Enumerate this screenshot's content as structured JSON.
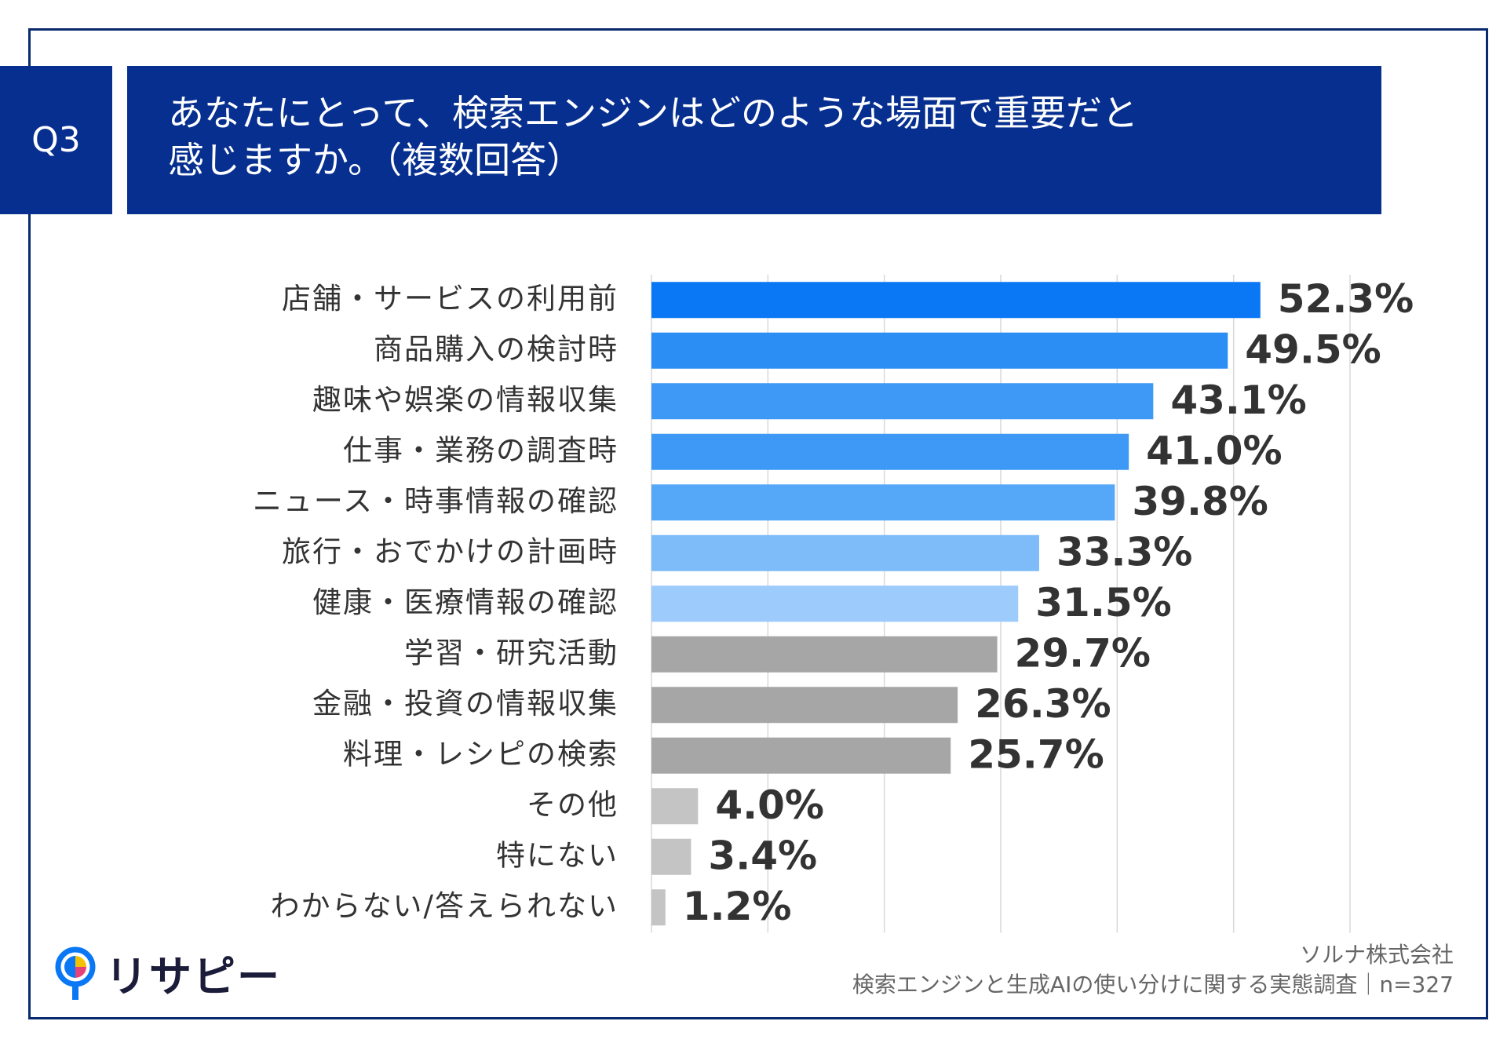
{
  "header": {
    "badge": "Q3",
    "title_line1": "あなたにとって、検索エンジンはどのような場面で重要だと",
    "title_line2": "感じますか。（複数回答）"
  },
  "chart_data": {
    "type": "bar",
    "orientation": "horizontal",
    "title": "あなたにとって、検索エンジンはどのような場面で重要だと感じますか。（複数回答）",
    "xlim": [
      0,
      60
    ],
    "grid": true,
    "categories": [
      "店舗・サービスの利用前",
      "商品購入の検討時",
      "趣味や娯楽の情報収集",
      "仕事・業務の調査時",
      "ニュース・時事情報の確認",
      "旅行・おでかけの計画時",
      "健康・医療情報の確認",
      "学習・研究活動",
      "金融・投資の情報収集",
      "料理・レシピの検索",
      "その他",
      "特にない",
      "わからない/答えられない"
    ],
    "values": [
      52.3,
      49.5,
      43.1,
      41.0,
      39.8,
      33.3,
      31.5,
      29.7,
      26.3,
      25.7,
      4.0,
      3.4,
      1.2
    ],
    "value_labels": [
      "52.3%",
      "49.5%",
      "43.1%",
      "41.0%",
      "39.8%",
      "33.3%",
      "31.5%",
      "29.7%",
      "26.3%",
      "25.7%",
      "4.0%",
      "3.4%",
      "1.2%"
    ],
    "bar_colors": [
      "#0a78f5",
      "#2a8ef5",
      "#3d99f5",
      "#3d99f5",
      "#55a7f7",
      "#7dbcf9",
      "#9dcbfb",
      "#a6a6a6",
      "#a6a6a6",
      "#a6a6a6",
      "#c4c4c4",
      "#c4c4c4",
      "#c4c4c4"
    ]
  },
  "footer": {
    "company": "ソルナ株式会社",
    "survey": "検索エンジンと生成AIの使い分けに関する実態調査｜n=327",
    "logo_text": "リサピー"
  },
  "colors": {
    "frame": "#0a2a6e",
    "header_bg": "#062f8f",
    "grid": "#d9d9d9"
  }
}
